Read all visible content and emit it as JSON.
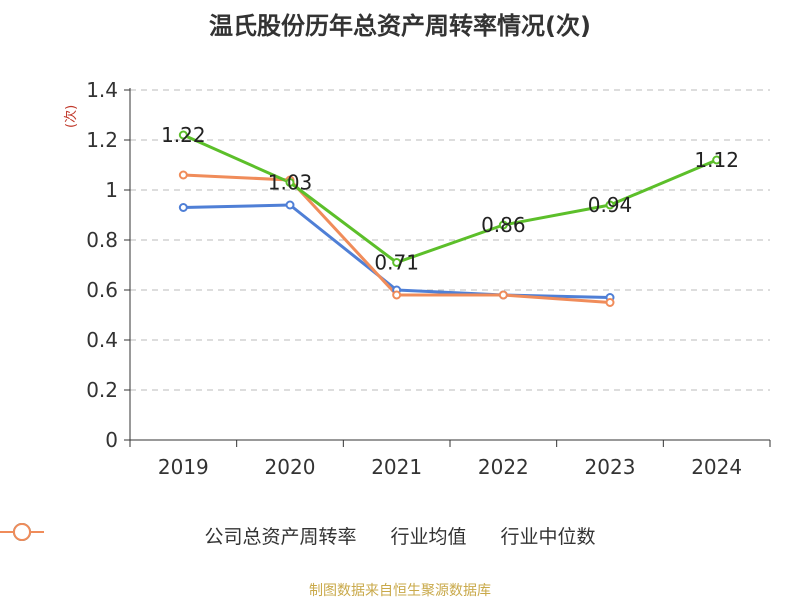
{
  "title": "温氏股份历年总资产周转率情况(次)",
  "unit_label": "(次)",
  "source": "制图数据来自恒生聚源数据库",
  "colors": {
    "company": "#5cbf2a",
    "industry_avg": "#4f7fd6",
    "industry_median": "#f08c5a",
    "grid": "#bbbbbb",
    "axis": "#333333"
  },
  "chart_data": {
    "type": "line",
    "categories": [
      "2019",
      "2020",
      "2021",
      "2022",
      "2023",
      "2024"
    ],
    "y_ticks": [
      "0",
      "0.2",
      "0.4",
      "0.6",
      "0.8",
      "1",
      "1.2",
      "1.4"
    ],
    "ylim": [
      0,
      1.4
    ],
    "grid": true,
    "legend_position": "bottom",
    "series": [
      {
        "name": "公司总资产周转率",
        "values": [
          1.22,
          1.03,
          0.71,
          0.86,
          0.94,
          1.12
        ],
        "labels": [
          "1.22",
          "1.03",
          "0.71",
          "0.86",
          "0.94",
          "1.12"
        ]
      },
      {
        "name": "行业均值",
        "values": [
          0.93,
          0.94,
          0.6,
          0.58,
          0.57,
          null
        ]
      },
      {
        "name": "行业中位数",
        "values": [
          1.06,
          1.04,
          0.58,
          0.58,
          0.55,
          null
        ]
      }
    ]
  }
}
